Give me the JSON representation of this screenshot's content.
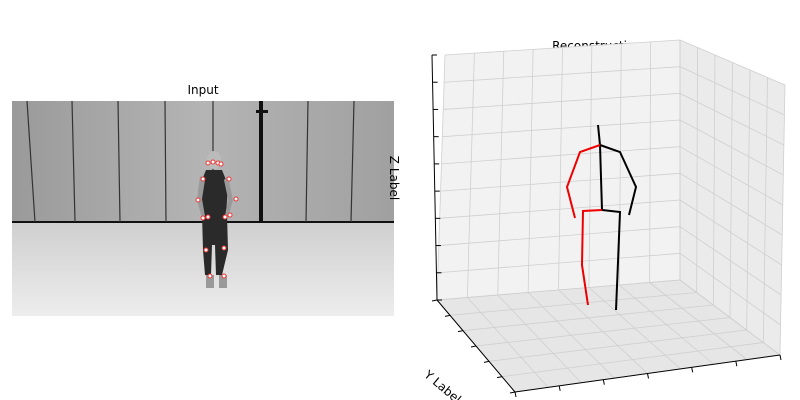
{
  "panels": [
    {
      "title": "Input"
    },
    {
      "title": "Reconstruction",
      "z_label": "Z Label",
      "y_label": "Y Label"
    }
  ]
}
